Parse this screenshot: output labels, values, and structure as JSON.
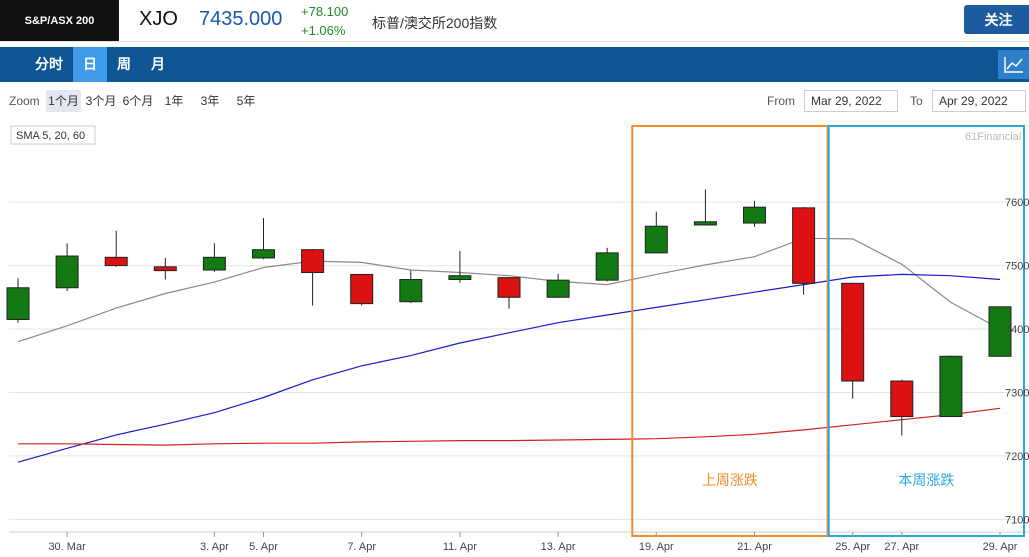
{
  "header": {
    "logo": "S&P/ASX 200",
    "ticker": "XJO",
    "price": "7435.000",
    "change": "+78.100",
    "change_pct": "+1.06%",
    "name": "标普/澳交所200指数",
    "follow_label": "关注"
  },
  "nav": {
    "tabs": [
      "分时",
      "日",
      "周",
      "月"
    ],
    "active_tab": "日",
    "chart_icon": "line-chart-icon"
  },
  "toolbar": {
    "zoom_label": "Zoom",
    "zoom_options": [
      "1个月",
      "3个月",
      "6个月",
      "1年",
      "3年",
      "5年"
    ],
    "active_zoom": "1个月",
    "from_label": "From",
    "from_value": "Mar 29, 2022",
    "to_label": "To",
    "to_value": "Apr 29, 2022"
  },
  "chart_data": {
    "type": "candlestick",
    "indicator_label": "SMA 5, 20, 60",
    "watermark": "61Financial",
    "ylim": [
      7080,
      7720
    ],
    "yticks": [
      7100,
      7200,
      7300,
      7400,
      7500,
      7600
    ],
    "ytick_labels": [
      "7100",
      "7200",
      "7300",
      "7400",
      "7500",
      "7600"
    ],
    "xtick_labels": [
      "30. Mar",
      "3. Apr",
      "5. Apr",
      "7. Apr",
      "11. Apr",
      "13. Apr",
      "19. Apr",
      "21. Apr",
      "25. Apr",
      "27. Apr",
      "29. Apr"
    ],
    "xtick_index": [
      1,
      4,
      5,
      7,
      9,
      11,
      13,
      15,
      17,
      18,
      20
    ],
    "candles": [
      {
        "open": 7415,
        "close": 7465,
        "high": 7480,
        "low": 7410
      },
      {
        "open": 7465,
        "close": 7515,
        "high": 7535,
        "low": 7460
      },
      {
        "open": 7513,
        "close": 7500,
        "high": 7555,
        "low": 7498
      },
      {
        "open": 7498,
        "close": 7492,
        "high": 7512,
        "low": 7478
      },
      {
        "open": 7493,
        "close": 7513,
        "high": 7535,
        "low": 7490
      },
      {
        "open": 7512,
        "close": 7525,
        "high": 7575,
        "low": 7510
      },
      {
        "open": 7525,
        "close": 7489,
        "high": 7526,
        "low": 7437
      },
      {
        "open": 7486,
        "close": 7440,
        "high": 7487,
        "low": 7437
      },
      {
        "open": 7443,
        "close": 7478,
        "high": 7492,
        "low": 7441
      },
      {
        "open": 7478,
        "close": 7484,
        "high": 7523,
        "low": 7473
      },
      {
        "open": 7481,
        "close": 7450,
        "high": 7482,
        "low": 7432
      },
      {
        "open": 7450,
        "close": 7477,
        "high": 7487,
        "low": 7449
      },
      {
        "open": 7477,
        "close": 7520,
        "high": 7528,
        "low": 7475
      },
      {
        "open": 7520,
        "close": 7562,
        "high": 7585,
        "low": 7519
      },
      {
        "open": 7564,
        "close": 7569,
        "high": 7620,
        "low": 7563
      },
      {
        "open": 7567,
        "close": 7592,
        "high": 7602,
        "low": 7561
      },
      {
        "open": 7591,
        "close": 7472,
        "high": 7592,
        "low": 7454
      },
      {
        "open": 7472,
        "close": 7318,
        "high": 7473,
        "low": 7290
      },
      {
        "open": 7318,
        "close": 7262,
        "high": 7320,
        "low": 7232
      },
      {
        "open": 7262,
        "close": 7357,
        "high": 7358,
        "low": 7262
      },
      {
        "open": 7357,
        "close": 7435,
        "high": 7435,
        "low": 7357
      }
    ],
    "series": [
      {
        "values": [
          7380,
          7405,
          7433,
          7456,
          7474,
          7497,
          7507,
          7505,
          7493,
          7489,
          7484,
          7475,
          7470,
          7486,
          7501,
          7514,
          7543,
          7542,
          7502,
          7442,
          7400
        ],
        "color": "#8a8a8a"
      },
      {
        "values": [
          7190,
          7212,
          7233,
          7250,
          7268,
          7292,
          7320,
          7342,
          7358,
          7378,
          7394,
          7410,
          7422,
          7434,
          7446,
          7458,
          7470,
          7482,
          7486,
          7484,
          7478
        ],
        "color": "#1a1ad0"
      },
      {
        "values": [
          7219,
          7219,
          7218,
          7217,
          7219,
          7220,
          7220,
          7222,
          7223,
          7224,
          7224,
          7225,
          7226,
          7227,
          7230,
          7234,
          7241,
          7249,
          7257,
          7265,
          7275
        ],
        "color": "#d42020"
      }
    ],
    "colors": {
      "up": "#137a13",
      "down": "#dd1111"
    },
    "annotations": [
      {
        "label": "上周涨跌",
        "from_index": 13,
        "to_index": 16,
        "color": "#f08c2e"
      },
      {
        "label": "本周涨跌",
        "from_index": 17,
        "to_index": 20,
        "color": "#2ca8d8"
      }
    ]
  }
}
